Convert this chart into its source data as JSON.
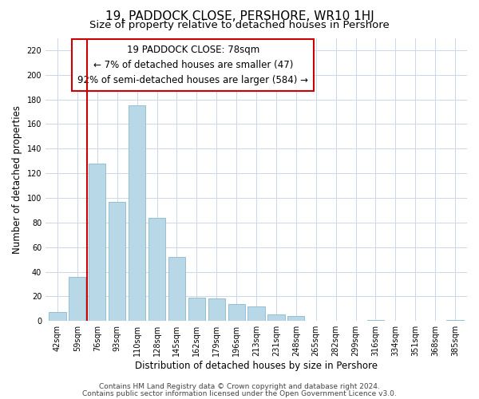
{
  "title": "19, PADDOCK CLOSE, PERSHORE, WR10 1HJ",
  "subtitle": "Size of property relative to detached houses in Pershore",
  "xlabel": "Distribution of detached houses by size in Pershore",
  "ylabel": "Number of detached properties",
  "bar_labels": [
    "42sqm",
    "59sqm",
    "76sqm",
    "93sqm",
    "110sqm",
    "128sqm",
    "145sqm",
    "162sqm",
    "179sqm",
    "196sqm",
    "213sqm",
    "231sqm",
    "248sqm",
    "265sqm",
    "282sqm",
    "299sqm",
    "316sqm",
    "334sqm",
    "351sqm",
    "368sqm",
    "385sqm"
  ],
  "bar_values": [
    7,
    36,
    128,
    97,
    175,
    84,
    52,
    19,
    18,
    14,
    12,
    5,
    4,
    0,
    0,
    0,
    1,
    0,
    0,
    0,
    1
  ],
  "bar_color": "#b8d8e8",
  "bar_edge_color": "#8ab8cc",
  "vline_color": "#cc0000",
  "vline_x": 1.5,
  "annotation_line1": "19 PADDOCK CLOSE: 78sqm",
  "annotation_line2": "← 7% of detached houses are smaller (47)",
  "annotation_line3": "92% of semi-detached houses are larger (584) →",
  "annotation_box_color": "#ffffff",
  "annotation_box_edge_color": "#cc0000",
  "ylim": [
    0,
    230
  ],
  "yticks": [
    0,
    20,
    40,
    60,
    80,
    100,
    120,
    140,
    160,
    180,
    200,
    220
  ],
  "footer_line1": "Contains HM Land Registry data © Crown copyright and database right 2024.",
  "footer_line2": "Contains public sector information licensed under the Open Government Licence v3.0.",
  "title_fontsize": 11,
  "subtitle_fontsize": 9.5,
  "axis_label_fontsize": 8.5,
  "tick_fontsize": 7,
  "annotation_fontsize": 8.5,
  "footer_fontsize": 6.5,
  "background_color": "#ffffff",
  "grid_color": "#ccd8e8"
}
